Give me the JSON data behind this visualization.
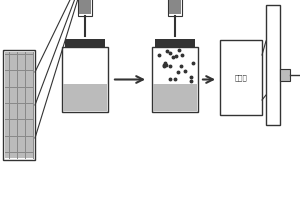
{
  "bg_color": "#ffffff",
  "dark": "#333333",
  "black": "#111111",
  "lgray": "#bbbbbb",
  "mgray": "#888888",
  "dgray": "#555555",
  "detector_text": "检测器",
  "fig_w": 3.0,
  "fig_h": 2.0,
  "dpi": 100
}
